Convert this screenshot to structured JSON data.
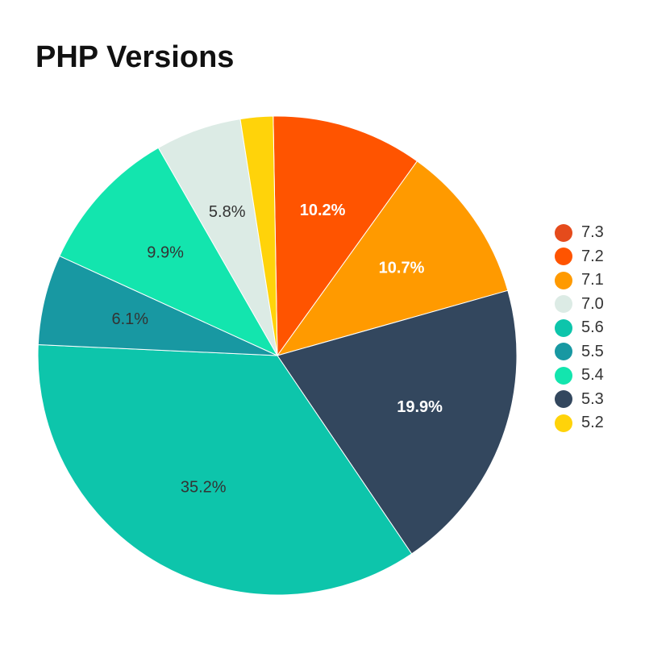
{
  "chart_data": {
    "type": "pie",
    "title": "PHP Versions",
    "slices": [
      {
        "name": "7.2",
        "value": 10.2,
        "label": "10.2%",
        "color": "#FF5400",
        "label_color": "#ffffff"
      },
      {
        "name": "7.1",
        "value": 10.7,
        "label": "10.7%",
        "color": "#FF9A00",
        "label_color": "#ffffff"
      },
      {
        "name": "5.3",
        "value": 19.9,
        "label": "19.9%",
        "color": "#33475E",
        "label_color": "#ffffff"
      },
      {
        "name": "5.6",
        "value": 35.2,
        "label": "35.2%",
        "color": "#0DC5AB",
        "label_color": "#333333"
      },
      {
        "name": "5.5",
        "value": 6.1,
        "label": "6.1%",
        "color": "#1898A2",
        "label_color": "#333333"
      },
      {
        "name": "5.4",
        "value": 9.9,
        "label": "9.9%",
        "color": "#13E5AE",
        "label_color": "#333333"
      },
      {
        "name": "7.0",
        "value": 5.8,
        "label": "5.8%",
        "color": "#DCEBE5",
        "label_color": "#333333"
      },
      {
        "name": "5.2",
        "value": 2.2,
        "label": "",
        "color": "#FFD30A",
        "label_color": "#333333"
      }
    ],
    "legend": {
      "position": "right",
      "entries": [
        {
          "name": "7.3",
          "color": "#E54B1C"
        },
        {
          "name": "7.2",
          "color": "#FF5400"
        },
        {
          "name": "7.1",
          "color": "#FF9A00"
        },
        {
          "name": "7.0",
          "color": "#DCEBE5"
        },
        {
          "name": "5.6",
          "color": "#0DC5AB"
        },
        {
          "name": "5.5",
          "color": "#1898A2"
        },
        {
          "name": "5.4",
          "color": "#13E5AE"
        },
        {
          "name": "5.3",
          "color": "#33475E"
        },
        {
          "name": "5.2",
          "color": "#FFD30A"
        }
      ]
    }
  }
}
